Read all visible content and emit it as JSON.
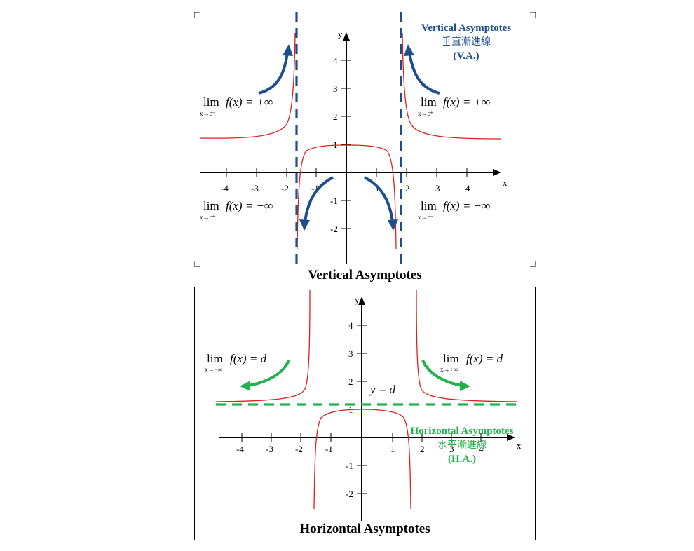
{
  "vertical_panel": {
    "caption": "Vertical Asymptotes",
    "title_en": "Vertical Asymptotes",
    "title_zh": "垂直漸進線",
    "title_abbr": "(V.A.)",
    "x_axis_label": "x",
    "y_axis_label": "y",
    "x_ticks": [
      "-4",
      "-3",
      "-2",
      "-1",
      "1",
      "2",
      "3",
      "4"
    ],
    "y_ticks": [
      "4",
      "3",
      "2",
      "1",
      "-1",
      "-2"
    ],
    "limits": {
      "top_left": {
        "lim": "lim",
        "sub": "x→c⁻",
        "expr": "f(x) = +∞"
      },
      "top_right": {
        "lim": "lim",
        "sub": "x→c⁺",
        "expr": "f(x) = +∞"
      },
      "bottom_left": {
        "lim": "lim",
        "sub": "x→c⁺",
        "expr": "f(x) = −∞"
      },
      "bottom_right": {
        "lim": "lim",
        "sub": "x→c⁻",
        "expr": "f(x) = −∞"
      }
    },
    "colors": {
      "curve": "#e02020",
      "asymptote": "#1f4e8c",
      "arrow": "#1f4e8c"
    }
  },
  "horizontal_panel": {
    "caption": "Horizontal Asymptotes",
    "title_en": "Horizontal Asymptotes",
    "title_zh": "水平漸進線",
    "title_abbr": "(H.A.)",
    "x_axis_label": "x",
    "y_axis_label": "y",
    "x_ticks": [
      "-4",
      "-3",
      "-2",
      "-1",
      "1",
      "2",
      "3",
      "4"
    ],
    "y_ticks": [
      "4",
      "3",
      "2",
      "1",
      "-1",
      "-2"
    ],
    "asymptote_label": "y = d",
    "limits": {
      "left": {
        "lim": "lim",
        "sub": "x→−∞",
        "expr": "f(x) = d"
      },
      "right": {
        "lim": "lim",
        "sub": "x→+∞",
        "expr": "f(x) = d"
      }
    },
    "colors": {
      "curve": "#e02020",
      "asymptote": "#22b14c",
      "arrow": "#22b14c"
    }
  }
}
